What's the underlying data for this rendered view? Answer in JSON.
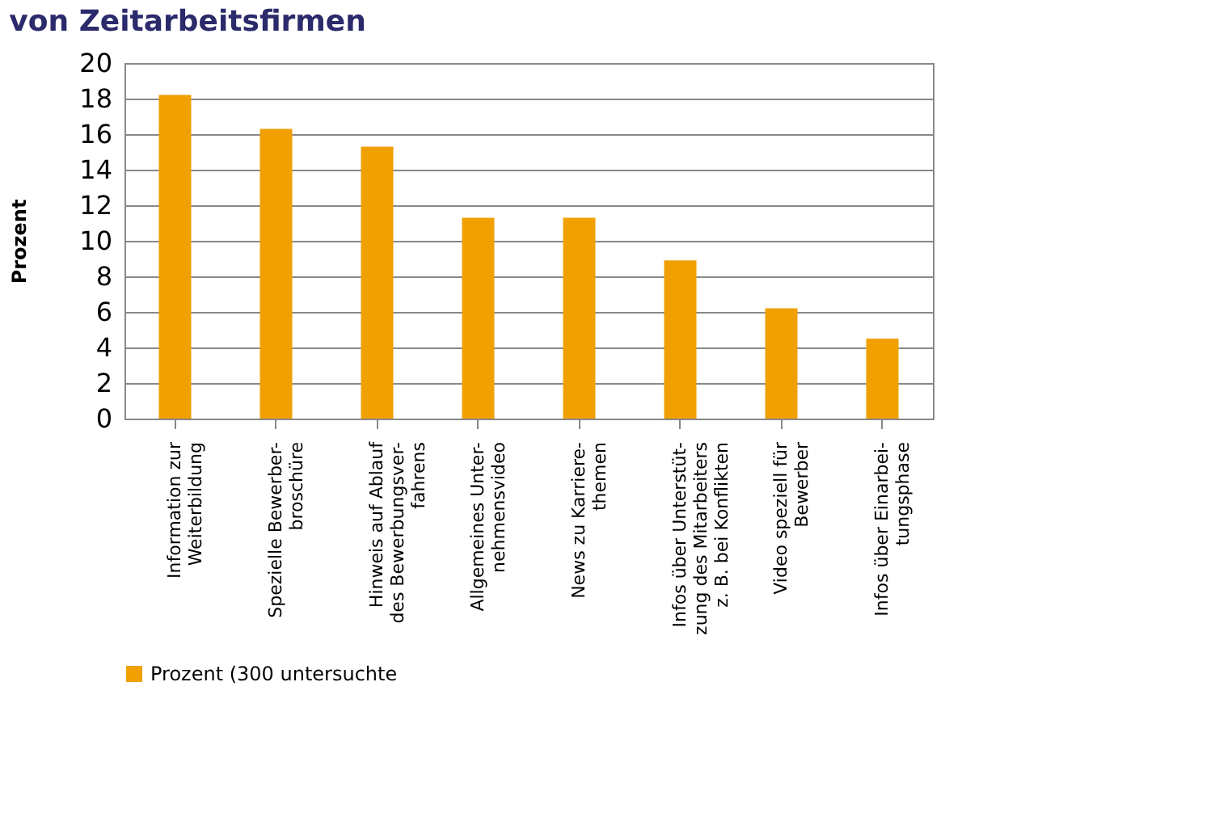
{
  "chart_data": {
    "type": "bar",
    "title": "von Zeitarbeitsfirmen",
    "ylabel": "Prozent",
    "categories": [
      "Information zur\nWeiterbildung",
      "Spezielle Bewerber-\nbroschüre",
      "Hinweis auf Ablauf\ndes Bewerbungsver-\nfahrens",
      "Allgemeines Unter-\nnehmensvideo",
      "News zu Karriere-\nthemen",
      "Infos über Unterstüt-\nzung des Mitarbeiters\nz. B. bei Konflikten",
      "Video speziell für\nBewerber",
      "Infos über Einarbei-\ntungsphase"
    ],
    "series": [
      {
        "name": "Prozent (300 untersuchte",
        "color": "#f0a000",
        "values": [
          18.2,
          16.3,
          15.3,
          11.3,
          11.3,
          8.9,
          6.2,
          4.5
        ]
      }
    ],
    "ylim": [
      0,
      20
    ],
    "yticks": [
      0,
      2,
      4,
      6,
      8,
      10,
      12,
      14,
      16,
      18,
      20
    ],
    "grid": "y",
    "legend": "bottom"
  }
}
